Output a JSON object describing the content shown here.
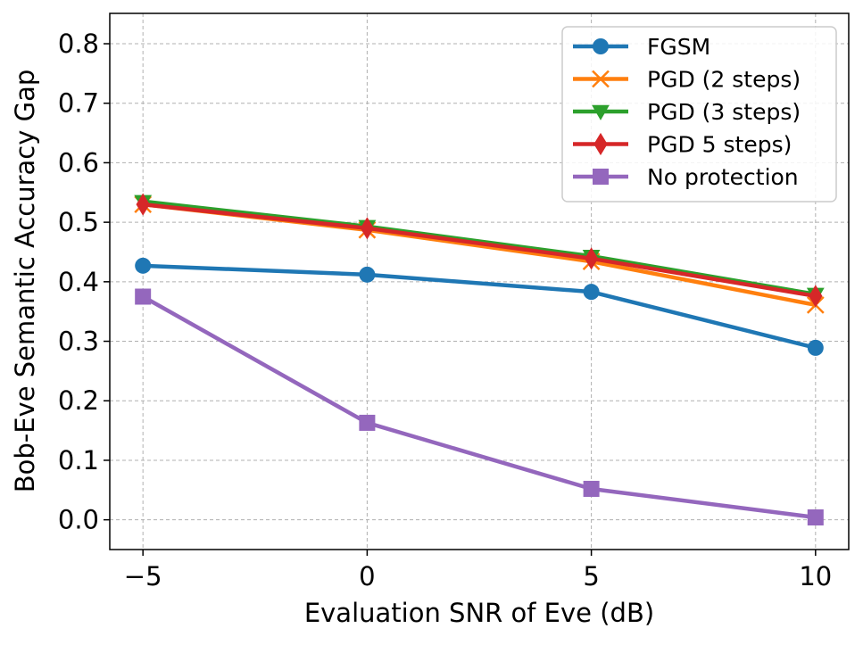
{
  "chart_data": {
    "type": "line",
    "title": "",
    "xlabel": "Evaluation SNR of Eve (dB)",
    "ylabel": "Bob-Eve Semantic Accuracy Gap",
    "x": [
      -5,
      0,
      5,
      10
    ],
    "xlim": [
      -5.74,
      10.74
    ],
    "ylim": [
      -0.05,
      0.851
    ],
    "xticks": [
      -5,
      0,
      5,
      10
    ],
    "xtick_labels": [
      "−5",
      "0",
      "5",
      "10"
    ],
    "yticks": [
      0.0,
      0.1,
      0.2,
      0.3,
      0.4,
      0.5,
      0.6,
      0.7,
      0.8
    ],
    "ytick_labels": [
      "0.0",
      "0.1",
      "0.2",
      "0.3",
      "0.4",
      "0.5",
      "0.6",
      "0.7",
      "0.8"
    ],
    "grid": true,
    "legend_position": "top-right",
    "series": [
      {
        "name": "FGSM",
        "color": "#1f77b4",
        "marker": "circle",
        "values": [
          0.427,
          0.412,
          0.383,
          0.289
        ]
      },
      {
        "name": "PGD (2 steps)",
        "color": "#ff7f0e",
        "marker": "x",
        "values": [
          0.53,
          0.487,
          0.434,
          0.361
        ]
      },
      {
        "name": "PGD (3 steps)",
        "color": "#2ca02c",
        "marker": "triangle-down",
        "values": [
          0.535,
          0.493,
          0.443,
          0.379
        ]
      },
      {
        "name": "PGD 5 steps)",
        "color": "#d62728",
        "marker": "diamond",
        "values": [
          0.53,
          0.49,
          0.439,
          0.376
        ]
      },
      {
        "name": "No protection",
        "color": "#9467bd",
        "marker": "square",
        "values": [
          0.375,
          0.163,
          0.052,
          0.004
        ]
      }
    ]
  }
}
